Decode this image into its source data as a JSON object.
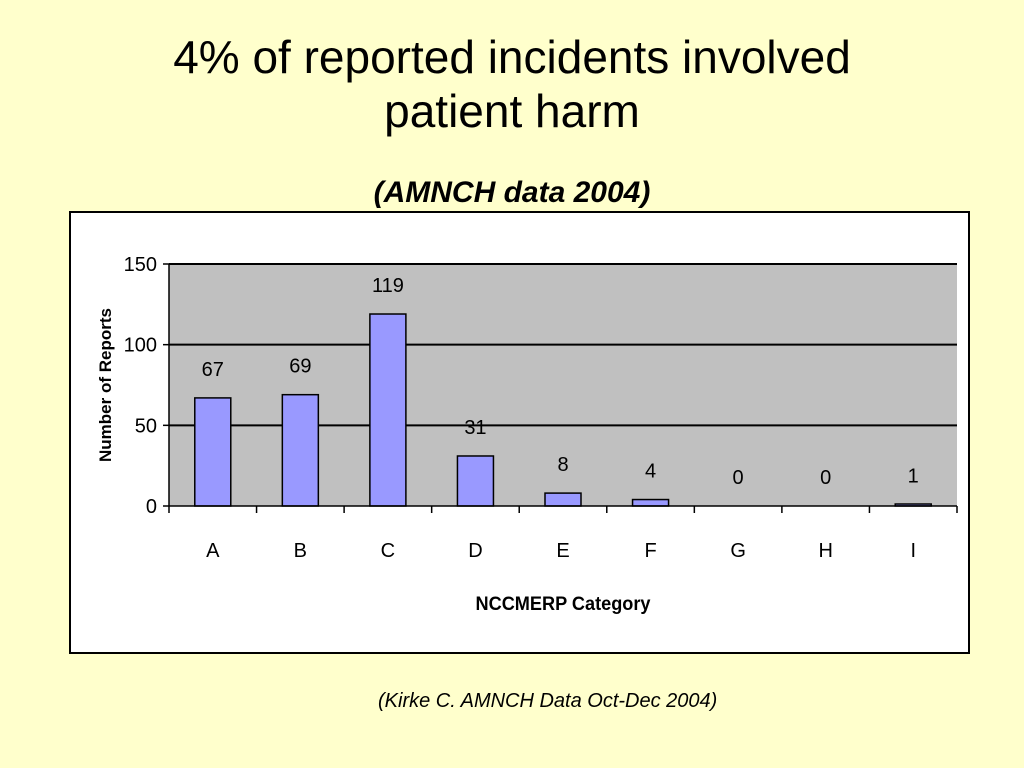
{
  "slide": {
    "title_line1": "4% of reported incidents involved",
    "title_line2": "patient harm",
    "subtitle": "(AMNCH data 2004)",
    "citation": "(Kirke C. AMNCH  Data Oct-Dec 2004)"
  },
  "chart_data": {
    "type": "bar",
    "categories": [
      "A",
      "B",
      "C",
      "D",
      "E",
      "F",
      "G",
      "H",
      "I"
    ],
    "values": [
      67,
      69,
      119,
      31,
      8,
      4,
      0,
      0,
      1
    ],
    "data_labels": [
      "67",
      "69",
      "119",
      "31",
      "8",
      "4",
      "0",
      "0",
      "1"
    ],
    "xlabel": "NCCMERP Category",
    "ylabel": "Number of Reports",
    "ylim": [
      0,
      150
    ],
    "yticks": [
      0,
      50,
      100,
      150
    ],
    "ytick_labels": [
      "0",
      "50",
      "100",
      "150"
    ],
    "grid": true,
    "legend": false,
    "colors": {
      "bar": "#9999FF",
      "plot_background": "#C0C0C0",
      "slide_background": "#FFFFCC"
    }
  }
}
